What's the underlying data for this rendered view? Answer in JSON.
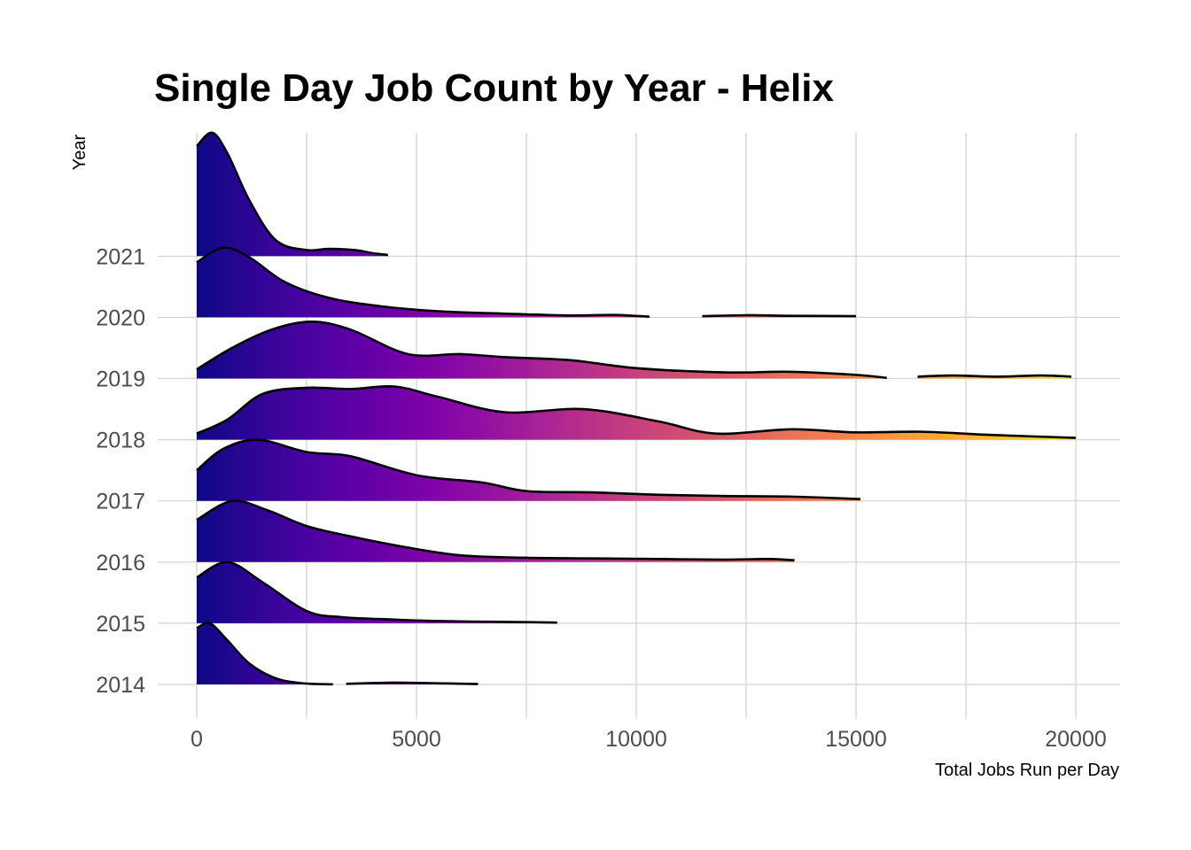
{
  "chart_data": {
    "type": "ridgeline",
    "title": "Single Day Job Count by Year - Helix",
    "xlabel": "Total Jobs Run per Day",
    "ylabel": "Year",
    "xlim": [
      -1000,
      21000
    ],
    "x_ticks": [
      0,
      5000,
      10000,
      15000,
      20000
    ],
    "x_tick_labels": [
      "0",
      "5000",
      "10000",
      "15000",
      "20000"
    ],
    "categories": [
      "2014",
      "2015",
      "2016",
      "2017",
      "2018",
      "2019",
      "2020",
      "2021"
    ],
    "grid": true,
    "fill": "gradient by x value (plasma: dark purple -> magenta -> orange -> yellow)",
    "colors": {
      "plasma": [
        "#0d0887",
        "#2a0593",
        "#41049d",
        "#5601a4",
        "#6a00a8",
        "#7e03a8",
        "#8f0da4",
        "#a11b9b",
        "#b12a90",
        "#bf3984",
        "#cc4778",
        "#d6556d",
        "#e16462",
        "#ea7457",
        "#f2844b",
        "#f89540",
        "#fca636",
        "#feb82c",
        "#fccd25",
        "#f0f921"
      ],
      "outline": "#000000",
      "grid": "#d3d3d3"
    },
    "series": [
      {
        "name": "2014",
        "segments": [
          {
            "x": [
              0,
              300,
              700,
              1200,
              1800,
              2400,
              3000,
              3100
            ],
            "density": [
              0.92,
              1.0,
              0.72,
              0.34,
              0.1,
              0.02,
              0.003,
              0.003
            ]
          },
          {
            "x": [
              3400,
              4000,
              4500,
              5200,
              6000,
              6400
            ],
            "density": [
              0.01,
              0.022,
              0.03,
              0.022,
              0.012,
              0.007
            ]
          }
        ]
      },
      {
        "name": "2015",
        "segments": [
          {
            "x": [
              0,
              700,
              1500,
              2500,
              3300,
              4500,
              5300,
              6300,
              7300,
              8200
            ],
            "density": [
              0.75,
              1.0,
              0.67,
              0.2,
              0.1,
              0.06,
              0.04,
              0.027,
              0.02,
              0.01
            ]
          }
        ]
      },
      {
        "name": "2016",
        "segments": [
          {
            "x": [
              0,
              800,
              1600,
              2500,
              3500,
              4700,
              6000,
              7500,
              9000,
              10500,
              12000,
              13000,
              13600
            ],
            "density": [
              0.69,
              1.0,
              0.85,
              0.59,
              0.42,
              0.25,
              0.11,
              0.07,
              0.06,
              0.05,
              0.04,
              0.05,
              0.03
            ]
          }
        ]
      },
      {
        "name": "2017",
        "segments": [
          {
            "x": [
              0,
              600,
              1400,
              2500,
              3500,
              5000,
              6500,
              7500,
              9000,
              10500,
              12000,
              13500,
              15100
            ],
            "density": [
              0.5,
              0.85,
              1.0,
              0.8,
              0.73,
              0.42,
              0.3,
              0.16,
              0.14,
              0.1,
              0.08,
              0.07,
              0.03
            ]
          }
        ]
      },
      {
        "name": "2018",
        "segments": [
          {
            "x": [
              0,
              700,
              1500,
              2500,
              3500,
              4500,
              5500,
              7000,
              8800,
              10500,
              11800,
              13500,
              15000,
              16500,
              18000,
              20000
            ],
            "density": [
              0.1,
              0.33,
              0.75,
              0.85,
              0.83,
              0.87,
              0.7,
              0.45,
              0.5,
              0.3,
              0.1,
              0.17,
              0.12,
              0.13,
              0.08,
              0.03
            ]
          }
        ]
      },
      {
        "name": "2019",
        "segments": [
          {
            "x": [
              0,
              800,
              1700,
              2600,
              3500,
              4800,
              6000,
              7000,
              8500,
              10000,
              12000,
              13500,
              15000,
              15700
            ],
            "density": [
              0.15,
              0.5,
              0.8,
              0.93,
              0.8,
              0.4,
              0.4,
              0.35,
              0.3,
              0.17,
              0.1,
              0.11,
              0.06,
              0.01
            ]
          },
          {
            "x": [
              16400,
              17200,
              18200,
              19200,
              19900
            ],
            "density": [
              0.03,
              0.05,
              0.03,
              0.05,
              0.03
            ]
          }
        ]
      },
      {
        "name": "2020",
        "segments": [
          {
            "x": [
              0,
              600,
              1200,
              2000,
              3000,
              4200,
              5500,
              7000,
              8500,
              9500,
              10300
            ],
            "density": [
              0.9,
              1.14,
              0.98,
              0.58,
              0.32,
              0.18,
              0.1,
              0.06,
              0.03,
              0.04,
              0.01
            ]
          },
          {
            "x": [
              11500,
              12500,
              13500,
              15000
            ],
            "density": [
              0.02,
              0.035,
              0.025,
              0.02
            ]
          }
        ]
      },
      {
        "name": "2021",
        "segments": [
          {
            "x": [
              0,
              350,
              700,
              1200,
              1800,
              2500,
              3000,
              3600,
              4000,
              4350
            ],
            "density": [
              1.8,
              2.02,
              1.68,
              0.91,
              0.26,
              0.1,
              0.12,
              0.1,
              0.05,
              0.02
            ]
          }
        ]
      }
    ]
  }
}
